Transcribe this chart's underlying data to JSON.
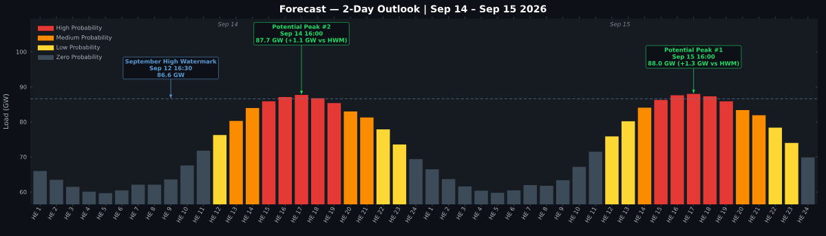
{
  "chart_data": {
    "type": "bar",
    "title": "Forecast — 2-Day Outlook  |  Sep 14 – Sep 15 2026",
    "ylabel": "Load (GW)",
    "categories": [
      "HE 1",
      "HE 2",
      "HE 3",
      "HE 4",
      "HE 5",
      "HE 6",
      "HE 7",
      "HE 8",
      "HE 9",
      "HE 10",
      "HE 11",
      "HE 12",
      "HE 13",
      "HE 14",
      "HE 15",
      "HE 16",
      "HE 17",
      "HE 18",
      "HE 19",
      "HE 20",
      "HE 21",
      "HE 22",
      "HE 23",
      "HE 24",
      "HE 1",
      "HE 2",
      "HE 3",
      "HE 4",
      "HE 5",
      "HE 6",
      "HE 7",
      "HE 8",
      "HE 9",
      "HE 10",
      "HE 11",
      "HE 12",
      "HE 13",
      "HE 14",
      "HE 15",
      "HE 16",
      "HE 17",
      "HE 18",
      "HE 19",
      "HE 20",
      "HE 21",
      "HE 22",
      "HE 23",
      "HE 24"
    ],
    "ylim": [
      56.5,
      109.5
    ],
    "yticks": [
      60,
      70,
      80,
      90,
      100
    ],
    "legend": "top left",
    "series": [
      {
        "name": "High Probability",
        "color": "#e53935",
        "values": [
          null,
          null,
          null,
          null,
          null,
          null,
          null,
          null,
          null,
          null,
          null,
          null,
          null,
          null,
          85.9,
          87.1,
          87.7,
          86.8,
          85.4,
          null,
          null,
          null,
          null,
          null,
          null,
          null,
          null,
          null,
          null,
          null,
          null,
          null,
          null,
          null,
          null,
          null,
          null,
          null,
          86.3,
          87.6,
          88.0,
          87.3,
          85.9,
          null,
          null,
          null,
          null,
          null
        ]
      },
      {
        "name": "Medium Probability",
        "color": "#fb8c00",
        "values": [
          null,
          null,
          null,
          null,
          null,
          null,
          null,
          null,
          null,
          null,
          null,
          null,
          80.3,
          84.0,
          null,
          null,
          null,
          null,
          null,
          83.0,
          81.3,
          null,
          null,
          null,
          null,
          null,
          null,
          null,
          null,
          null,
          null,
          null,
          null,
          null,
          null,
          null,
          null,
          84.1,
          null,
          null,
          null,
          null,
          null,
          83.4,
          81.9,
          null,
          null,
          null
        ]
      },
      {
        "name": "Low Probability",
        "color": "#fdd835",
        "values": [
          null,
          null,
          null,
          null,
          null,
          null,
          null,
          null,
          null,
          null,
          null,
          76.3,
          null,
          null,
          null,
          null,
          null,
          null,
          null,
          null,
          null,
          77.9,
          73.6,
          null,
          null,
          null,
          null,
          null,
          null,
          null,
          null,
          null,
          null,
          null,
          null,
          75.9,
          80.2,
          null,
          null,
          null,
          null,
          null,
          null,
          null,
          null,
          78.4,
          74.0,
          null
        ]
      },
      {
        "name": "Zero Probability",
        "color": "#3d4a58",
        "values": [
          66.0,
          63.5,
          61.5,
          60.1,
          59.7,
          60.5,
          62.1,
          62.1,
          63.6,
          67.6,
          71.8,
          null,
          null,
          null,
          null,
          null,
          null,
          null,
          null,
          null,
          null,
          null,
          null,
          69.4,
          66.5,
          63.7,
          61.6,
          60.4,
          59.8,
          60.5,
          62.0,
          61.8,
          63.4,
          67.2,
          71.5,
          null,
          null,
          null,
          null,
          null,
          null,
          null,
          null,
          null,
          null,
          null,
          null,
          69.9
        ]
      }
    ],
    "ref_lines": [
      {
        "axis": "y",
        "value": 86.6,
        "color": "#5b7fa6",
        "line_style": "dashed"
      }
    ],
    "annotations": [
      "Sep 14",
      "Sep 15",
      "September High Watermark",
      "Sep 12 16:30",
      {
        "text": "86.6 GW",
        "x": "HE 9",
        "y": 86.6
      },
      "Potential Peak #2",
      "Sep 14 16:00",
      {
        "text": "87.7 GW  (+1.1 GW vs HWM)",
        "x": "HE 17",
        "y": 87.7
      },
      "Potential Peak #1",
      "Sep 15 16:00",
      {
        "text": "88.0 GW  (+1.3 GW vs HWM)",
        "y": 88.0
      }
    ]
  }
}
